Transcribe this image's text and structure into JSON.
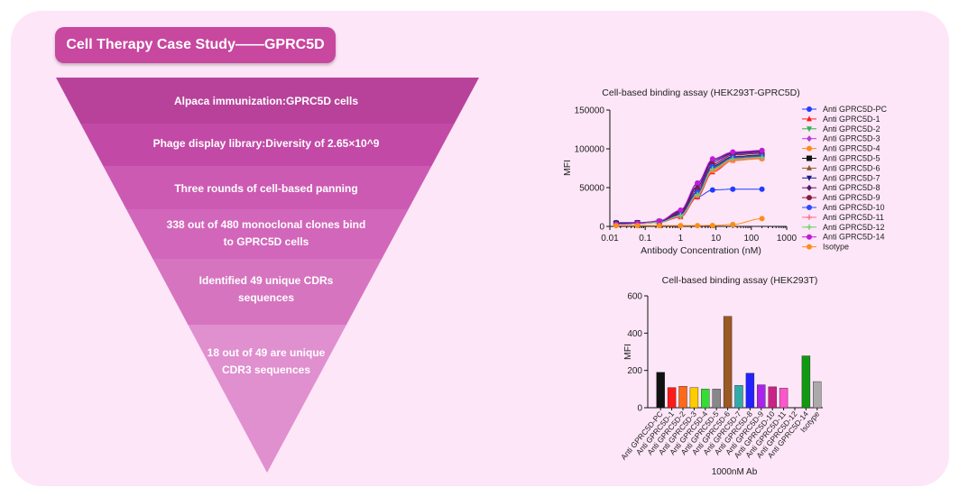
{
  "header": {
    "title": "Cell Therapy Case Study——GPRC5D"
  },
  "funnel": {
    "steps": [
      {
        "label": "Alpaca immunization:GPRC5D cells",
        "color": "#b8429a"
      },
      {
        "label": "Phage display library:Diversity of 2.65×10^9",
        "color": "#c24aa6"
      },
      {
        "label": "Three rounds of cell-based panning",
        "color": "#cc5ab3"
      },
      {
        "label": "338 out of 480 monoclonal clones bind to GPRC5D cells",
        "color": "#d266ba"
      },
      {
        "label": "Identified 49 unique CDRs sequences",
        "color": "#d674c0"
      },
      {
        "label": "18 out of 49 are unique CDR3 sequences",
        "color": "#e08fcf"
      }
    ]
  },
  "chart_data": [
    {
      "type": "line",
      "title": "Cell-based binding assay (HEK293T-GPRC5D)",
      "xlabel": "Antibody Concentration (nM)",
      "ylabel": "MFI",
      "xscale": "log",
      "xlim": [
        0.01,
        1000
      ],
      "ylim": [
        0,
        150000
      ],
      "x_ticks": [
        "0.01",
        "0.1",
        "1",
        "10",
        "100",
        "1000"
      ],
      "y_ticks": [
        "0",
        "50000",
        "100000",
        "150000"
      ],
      "x": [
        0.015,
        0.06,
        0.25,
        1,
        3,
        8,
        30,
        200
      ],
      "legend_position": "right",
      "series": [
        {
          "name": "Anti GPRC5D-PC",
          "color": "#1f3cff",
          "marker": "circle",
          "values": [
            5000,
            5000,
            6000,
            15000,
            38000,
            47000,
            48000,
            48000
          ]
        },
        {
          "name": "Anti GPRC5D-1",
          "color": "#ff1a1a",
          "marker": "triangle",
          "values": [
            3000,
            3500,
            5000,
            12000,
            38000,
            70000,
            85000,
            88000
          ]
        },
        {
          "name": "Anti GPRC5D-2",
          "color": "#2db34a",
          "marker": "triangle-down",
          "values": [
            3000,
            3500,
            5500,
            14000,
            42000,
            75000,
            88000,
            90000
          ]
        },
        {
          "name": "Anti GPRC5D-3",
          "color": "#b03cd8",
          "marker": "diamond",
          "values": [
            3000,
            4000,
            6000,
            18000,
            50000,
            82000,
            93000,
            95000
          ]
        },
        {
          "name": "Anti GPRC5D-4",
          "color": "#ff8a1a",
          "marker": "circle",
          "values": [
            3000,
            3500,
            5000,
            13000,
            40000,
            72000,
            85000,
            87000
          ]
        },
        {
          "name": "Anti GPRC5D-5",
          "color": "#111111",
          "marker": "square",
          "values": [
            4000,
            4500,
            6000,
            16000,
            45000,
            78000,
            90000,
            92000
          ]
        },
        {
          "name": "Anti GPRC5D-6",
          "color": "#8a5a2b",
          "marker": "triangle",
          "values": [
            3000,
            3500,
            5000,
            14000,
            42000,
            76000,
            88000,
            90000
          ]
        },
        {
          "name": "Anti GPRC5D-7",
          "color": "#1a1a8a",
          "marker": "triangle-down",
          "values": [
            3000,
            4000,
            6500,
            19000,
            52000,
            84000,
            94000,
            96000
          ]
        },
        {
          "name": "Anti GPRC5D-8",
          "color": "#5a1a6a",
          "marker": "diamond",
          "values": [
            3000,
            4000,
            7000,
            20000,
            55000,
            86000,
            95000,
            97000
          ]
        },
        {
          "name": "Anti GPRC5D-9",
          "color": "#8a1a3a",
          "marker": "circle",
          "values": [
            3000,
            4000,
            6000,
            17000,
            48000,
            80000,
            92000,
            94000
          ]
        },
        {
          "name": "Anti GPRC5D-10",
          "color": "#2a4aff",
          "marker": "circle",
          "values": [
            3000,
            3500,
            5500,
            15000,
            44000,
            77000,
            89000,
            91000
          ]
        },
        {
          "name": "Anti GPRC5D-11",
          "color": "#ff6a8a",
          "marker": "plus",
          "values": [
            3000,
            3500,
            5000,
            13000,
            40000,
            73000,
            86000,
            88000
          ]
        },
        {
          "name": "Anti GPRC5D-12",
          "color": "#6ad06a",
          "marker": "plus",
          "values": [
            3000,
            3500,
            5000,
            14000,
            41000,
            74000,
            87000,
            89000
          ]
        },
        {
          "name": "Anti GPRC5D-14",
          "color": "#c01ad8",
          "marker": "circle",
          "values": [
            3000,
            4000,
            7000,
            21000,
            56000,
            87000,
            96000,
            98000
          ]
        },
        {
          "name": "Isotype",
          "color": "#ff8c1a",
          "marker": "circle",
          "values": [
            1000,
            1000,
            1000,
            1000,
            1000,
            1200,
            2500,
            10000
          ]
        }
      ]
    },
    {
      "type": "bar",
      "title": "Cell-based binding assay (HEK293T)",
      "xlabel": "1000nM Ab",
      "ylabel": "MFI",
      "ylim": [
        0,
        600
      ],
      "y_ticks": [
        "0",
        "200",
        "400",
        "600"
      ],
      "categories": [
        "Anti GPRC5D-PC",
        "Anti GPRC5D-1",
        "Anti GPRC5D-2",
        "Anti GPRC5D-3",
        "Anti GPRC5D-4",
        "Anti GPRC5D-5",
        "Anti GPRC5D-6",
        "Anti GPRC5D-7",
        "Anti GPRC5D-8",
        "Anti GPRC5D-9",
        "Anti GPRC5D-10",
        "Anti GPRC5D-11",
        "Anti GPRC5D-12",
        "Anti GPRC5D-14",
        "Isotype"
      ],
      "values": [
        190,
        108,
        115,
        108,
        100,
        100,
        490,
        120,
        185,
        123,
        112,
        105,
        0,
        278,
        140
      ],
      "colors": [
        "#111111",
        "#ff1a1a",
        "#ff6a1a",
        "#ffcc00",
        "#33dd33",
        "#888888",
        "#9a5a22",
        "#33aaaa",
        "#2222ff",
        "#aa22ee",
        "#cc2288",
        "#ff55cc",
        "#ffffff",
        "#119911",
        "#aaaaaa"
      ]
    }
  ]
}
